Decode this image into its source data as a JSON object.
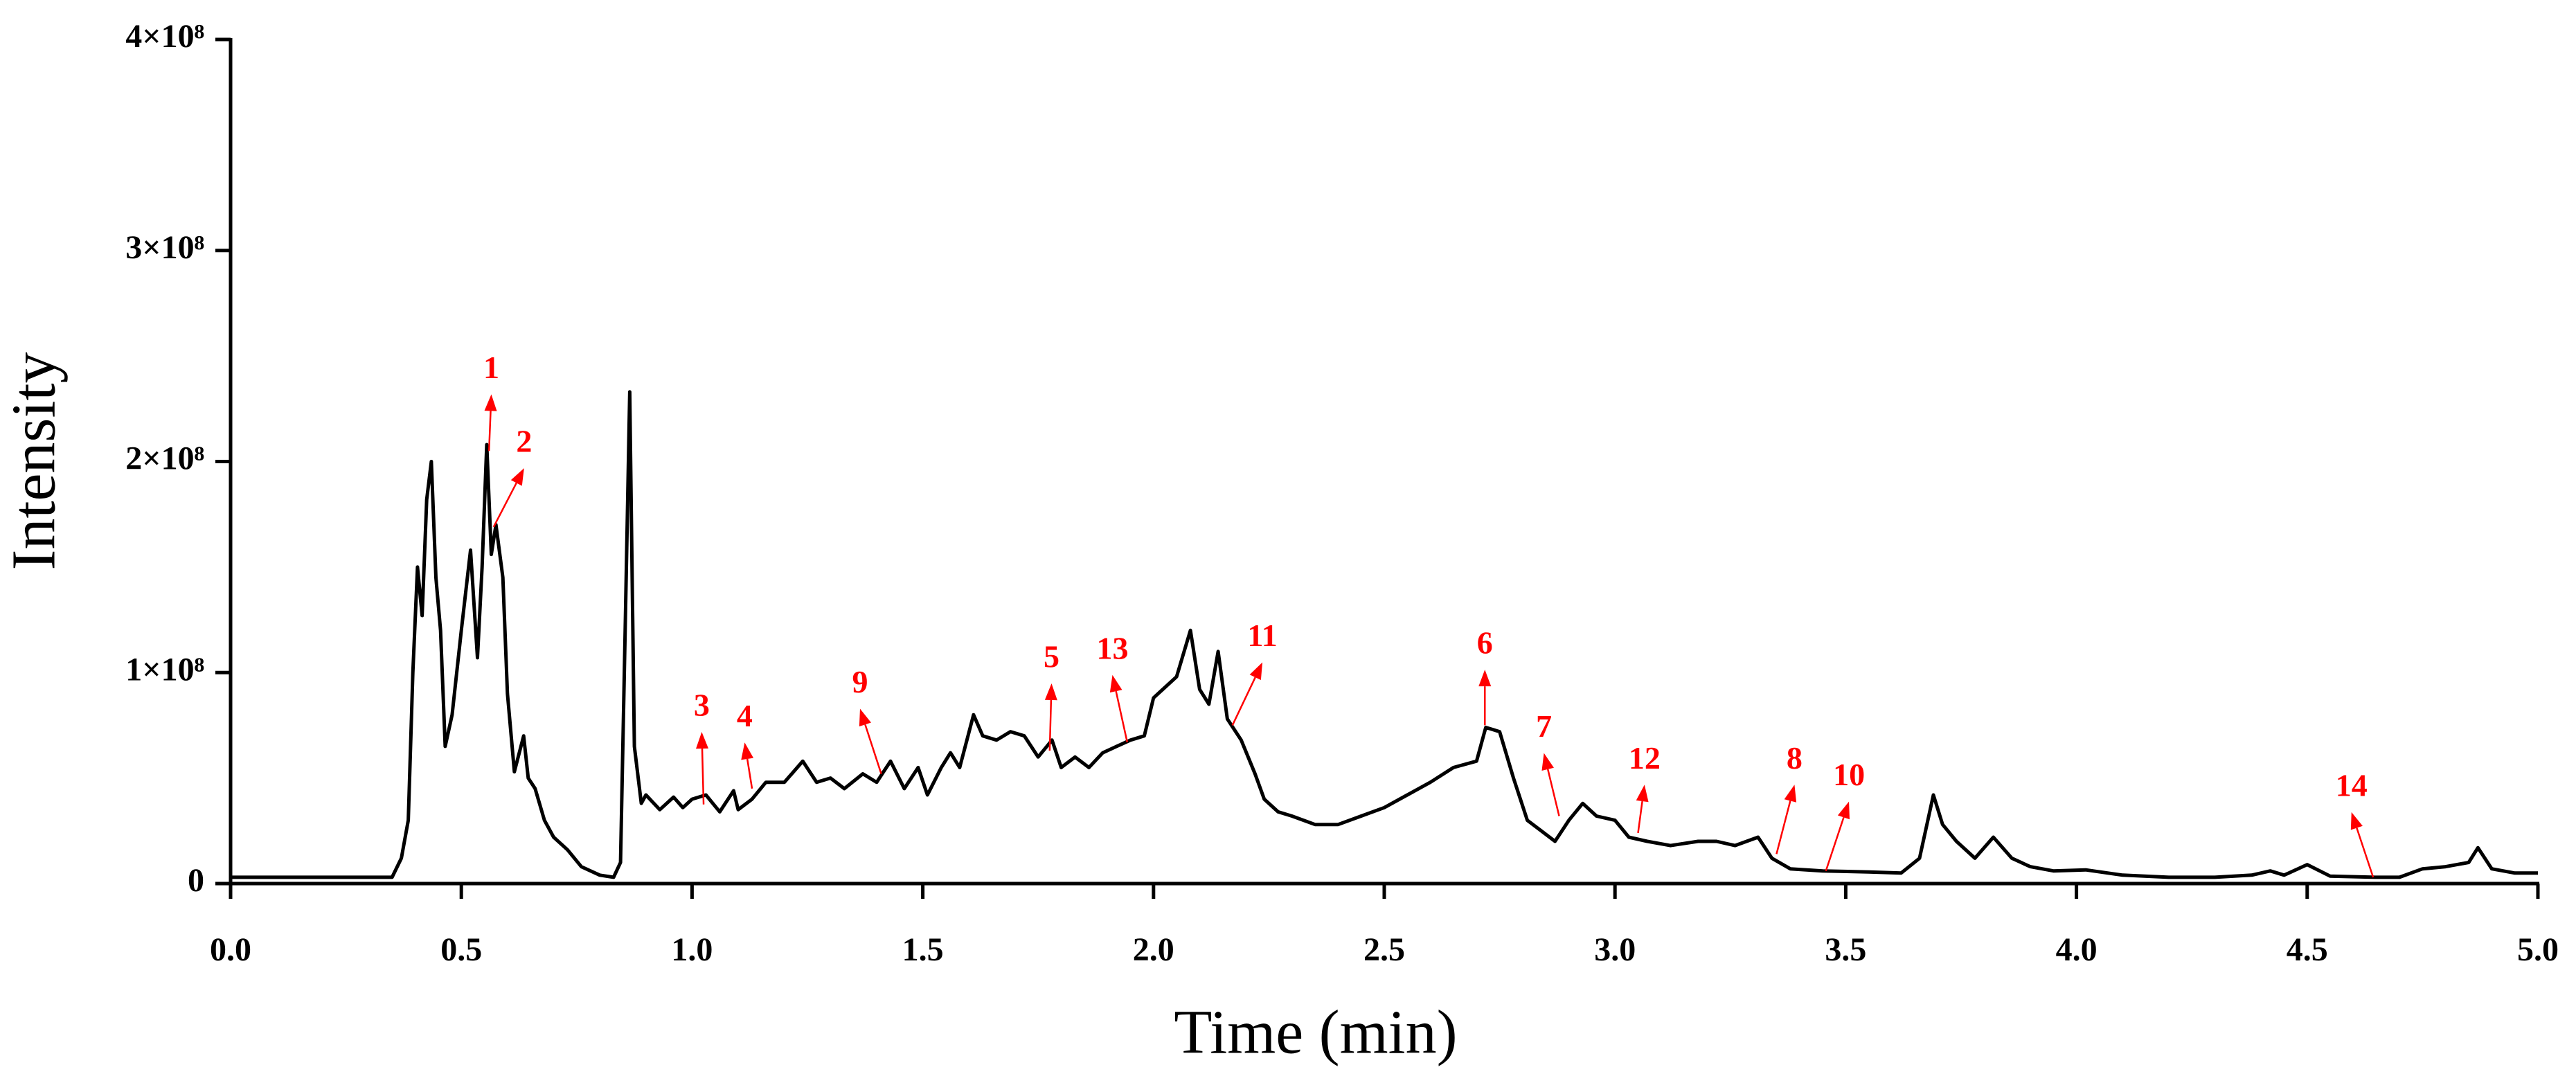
{
  "chart_data": {
    "type": "line",
    "xlabel": "Time (min)",
    "ylabel": "Intensity",
    "color": "#000000",
    "annotation_color": "#ff0000",
    "xlim": [
      0,
      5
    ],
    "ylim": [
      0,
      400000000.0
    ],
    "xticks": [
      {
        "value": 0,
        "label": "0.0"
      },
      0.5,
      {
        "value": 1,
        "label": "1.0"
      },
      1.5,
      {
        "value": 2,
        "label": "2.0"
      },
      2.5,
      {
        "value": 3,
        "label": "3.0"
      },
      3.5,
      {
        "value": 4,
        "label": "4.0"
      },
      4.5,
      {
        "value": 5,
        "label": "5.0"
      }
    ],
    "yticks": [
      0,
      {
        "value": 100000000.0,
        "label": "1×10⁸"
      },
      {
        "value": 200000000.0,
        "label": "2×10⁸"
      },
      {
        "value": 300000000.0,
        "label": "3×10⁸"
      },
      {
        "value": 400000000.0,
        "label": "4×10⁸"
      }
    ],
    "x": [
      0.0,
      0.35,
      0.37,
      0.385,
      0.395,
      0.405,
      0.415,
      0.425,
      0.435,
      0.445,
      0.455,
      0.465,
      0.48,
      0.5,
      0.52,
      0.535,
      0.545,
      0.555,
      0.565,
      0.575,
      0.59,
      0.6,
      0.615,
      0.635,
      0.645,
      0.66,
      0.68,
      0.7,
      0.73,
      0.76,
      0.8,
      0.83,
      0.845,
      0.855,
      0.865,
      0.875,
      0.89,
      0.9,
      0.93,
      0.96,
      0.98,
      1.0,
      1.03,
      1.06,
      1.09,
      1.1,
      1.13,
      1.16,
      1.2,
      1.24,
      1.27,
      1.3,
      1.33,
      1.37,
      1.4,
      1.43,
      1.46,
      1.49,
      1.51,
      1.54,
      1.56,
      1.58,
      1.61,
      1.63,
      1.66,
      1.69,
      1.72,
      1.75,
      1.78,
      1.8,
      1.83,
      1.86,
      1.89,
      1.92,
      1.95,
      1.98,
      2.0,
      2.02,
      2.05,
      2.08,
      2.1,
      2.12,
      2.14,
      2.16,
      2.19,
      2.22,
      2.24,
      2.27,
      2.3,
      2.35,
      2.4,
      2.45,
      2.5,
      2.55,
      2.6,
      2.65,
      2.7,
      2.72,
      2.75,
      2.78,
      2.81,
      2.84,
      2.87,
      2.9,
      2.93,
      2.96,
      3.0,
      3.03,
      3.07,
      3.12,
      3.18,
      3.22,
      3.26,
      3.31,
      3.34,
      3.38,
      3.45,
      3.55,
      3.62,
      3.66,
      3.69,
      3.71,
      3.74,
      3.78,
      3.82,
      3.86,
      3.9,
      3.95,
      4.02,
      4.1,
      4.2,
      4.3,
      4.38,
      4.42,
      4.45,
      4.5,
      4.55,
      4.65,
      4.7,
      4.75,
      4.8,
      4.85,
      4.87,
      4.9,
      4.95,
      5.0
    ],
    "values": [
      3000000.0,
      3000000.0,
      12000000.0,
      30000000.0,
      100000000.0,
      150000000.0,
      127000000.0,
      182000000.0,
      200000000.0,
      145000000.0,
      120000000.0,
      65000000.0,
      80000000.0,
      120000000.0,
      158000000.0,
      107000000.0,
      150000000.0,
      208000000.0,
      156000000.0,
      170000000.0,
      145000000.0,
      90000000.0,
      53000000.0,
      70000000.0,
      50000000.0,
      45000000.0,
      30000000.0,
      22000000.0,
      16000000.0,
      8000000.0,
      4000000.0,
      3000000.0,
      10000000.0,
      120000000.0,
      233000000.0,
      65000000.0,
      38000000.0,
      42000000.0,
      35000000.0,
      41000000.0,
      36000000.0,
      40000000.0,
      42000000.0,
      34000000.0,
      44000000.0,
      35000000.0,
      40000000.0,
      48000000.0,
      48000000.0,
      58000000.0,
      48000000.0,
      50000000.0,
      45000000.0,
      52000000.0,
      48000000.0,
      58000000.0,
      45000000.0,
      55000000.0,
      42000000.0,
      55000000.0,
      62000000.0,
      55000000.0,
      80000000.0,
      70000000.0,
      68000000.0,
      72000000.0,
      70000000.0,
      60000000.0,
      68000000.0,
      55000000.0,
      60000000.0,
      55000000.0,
      62000000.0,
      65000000.0,
      68000000.0,
      70000000.0,
      88000000.0,
      92000000.0,
      98000000.0,
      120000000.0,
      92000000.0,
      85000000.0,
      110000000.0,
      78000000.0,
      68000000.0,
      52000000.0,
      40000000.0,
      34000000.0,
      32000000.0,
      28000000.0,
      28000000.0,
      32000000.0,
      36000000.0,
      42000000.0,
      48000000.0,
      55000000.0,
      58000000.0,
      74000000.0,
      72000000.0,
      50000000.0,
      30000000.0,
      25000000.0,
      20000000.0,
      30000000.0,
      38000000.0,
      32000000.0,
      30000000.0,
      22000000.0,
      20000000.0,
      18000000.0,
      20000000.0,
      20000000.0,
      18000000.0,
      22000000.0,
      12000000.0,
      7000000.0,
      6000000.0,
      5500000.0,
      5000000.0,
      12000000.0,
      42000000.0,
      28000000.0,
      20000000.0,
      12000000.0,
      22000000.0,
      12000000.0,
      8000000.0,
      6000000.0,
      6500000.0,
      4000000.0,
      3000000.0,
      3000000.0,
      4000000.0,
      6000000.0,
      4000000.0,
      9000000.0,
      3500000.0,
      3000000.0,
      3000000.0,
      7000000.0,
      8000000.0,
      10000000.0,
      17000000.0,
      7000000.0,
      5000000.0,
      5000000.0
    ],
    "annotations": [
      {
        "text": "1",
        "x": 0.56,
        "y": 205000000.0,
        "text_x": 0.565,
        "text_y": 243000000.0
      },
      {
        "text": "2",
        "x": 0.57,
        "y": 169000000.0,
        "text_x": 0.636,
        "text_y": 208000000.0
      },
      {
        "text": "3",
        "x": 1.025,
        "y": 37500000.0,
        "text_x": 1.021,
        "text_y": 83000000.0
      },
      {
        "text": "4",
        "x": 1.13,
        "y": 45000000.0,
        "text_x": 1.114,
        "text_y": 78000000.0
      },
      {
        "text": "9",
        "x": 1.41,
        "y": 52000000.0,
        "text_x": 1.364,
        "text_y": 94000000.0
      },
      {
        "text": "5",
        "x": 1.775,
        "y": 63000000.0,
        "text_x": 1.779,
        "text_y": 106000000.0
      },
      {
        "text": "13",
        "x": 1.943,
        "y": 67000000.0,
        "text_x": 1.911,
        "text_y": 110000000.0
      },
      {
        "text": "11",
        "x": 2.171,
        "y": 75000000.0,
        "text_x": 2.236,
        "text_y": 116000000.0
      },
      {
        "text": "6",
        "x": 2.718,
        "y": 75000000.0,
        "text_x": 2.718,
        "text_y": 112500000.0
      },
      {
        "text": "7",
        "x": 2.879,
        "y": 32000000.0,
        "text_x": 2.846,
        "text_y": 73000000.0
      },
      {
        "text": "12",
        "x": 3.05,
        "y": 24000000.0,
        "text_x": 3.064,
        "text_y": 58000000.0
      },
      {
        "text": "8",
        "x": 3.35,
        "y": 14000000.0,
        "text_x": 3.389,
        "text_y": 58000000.0
      },
      {
        "text": "10",
        "x": 3.457,
        "y": 6000000.0,
        "text_x": 3.507,
        "text_y": 50000000.0
      },
      {
        "text": "14",
        "x": 4.643,
        "y": 3000000.0,
        "text_x": 4.596,
        "text_y": 45000000.0
      }
    ]
  }
}
